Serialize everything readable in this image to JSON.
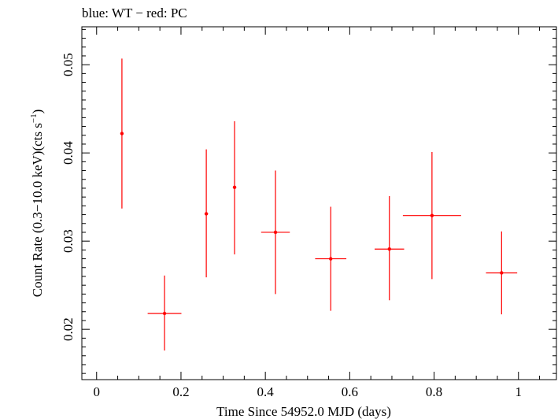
{
  "chart_data": {
    "type": "scatter",
    "title": "blue: WT − red: PC",
    "xlabel": "Time Since 54952.0 MJD (days)",
    "ylabel_main": "Count Rate (0.3−10.0 keV)(cts s",
    "ylabel_sup": "−1",
    "ylabel_end": ")",
    "xlim": [
      -0.035,
      1.09
    ],
    "ylim": [
      0.0143,
      0.0543
    ],
    "xticks": [
      0,
      0.2,
      0.4,
      0.6,
      0.8,
      1
    ],
    "xtick_labels": [
      "0",
      "0.2",
      "0.4",
      "0.6",
      "0.8",
      "1"
    ],
    "yticks": [
      0.02,
      0.03,
      0.04,
      0.05
    ],
    "ytick_labels": [
      "0.02",
      "0.03",
      "0.04",
      "0.05"
    ],
    "grid": false,
    "series": [
      {
        "color": "#ff0000",
        "points": [
          {
            "x": 0.06,
            "y": 0.0422,
            "xerr": 0.001,
            "ylo": 0.0337,
            "yhi": 0.0507
          },
          {
            "x": 0.161,
            "y": 0.0218,
            "xerr": 0.04,
            "ylo": 0.0176,
            "yhi": 0.0261
          },
          {
            "x": 0.26,
            "y": 0.0331,
            "xerr": 0.004,
            "ylo": 0.0259,
            "yhi": 0.0404
          },
          {
            "x": 0.327,
            "y": 0.0361,
            "xerr": 0.004,
            "ylo": 0.0285,
            "yhi": 0.0436
          },
          {
            "x": 0.424,
            "y": 0.031,
            "xerr": 0.034,
            "ylo": 0.024,
            "yhi": 0.038
          },
          {
            "x": 0.555,
            "y": 0.028,
            "xerr": 0.037,
            "ylo": 0.0221,
            "yhi": 0.0339
          },
          {
            "x": 0.694,
            "y": 0.0291,
            "xerr": 0.035,
            "ylo": 0.0233,
            "yhi": 0.0351
          },
          {
            "x": 0.795,
            "y": 0.0329,
            "xerr": 0.069,
            "ylo": 0.0257,
            "yhi": 0.0401
          },
          {
            "x": 0.96,
            "y": 0.0264,
            "xerr": 0.037,
            "ylo": 0.0217,
            "yhi": 0.0311
          }
        ]
      }
    ]
  }
}
